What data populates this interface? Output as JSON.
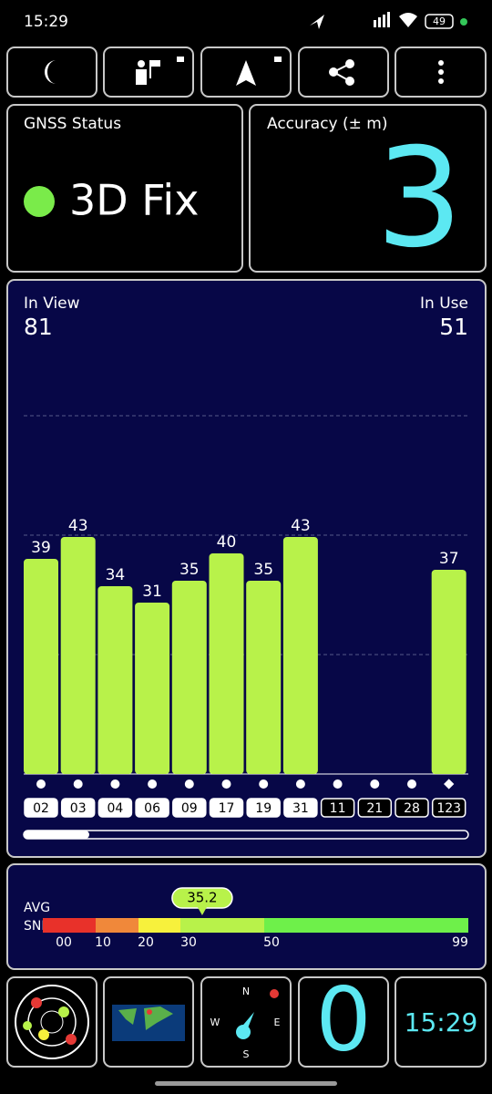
{
  "status_bar": {
    "time": "15:29",
    "battery": "49"
  },
  "gnss_status": {
    "title": "GNSS Status",
    "value": "3D Fix"
  },
  "accuracy": {
    "title": "Accuracy (± m)",
    "value": "3"
  },
  "satellites": {
    "in_view_label": "In View",
    "in_view": "81",
    "in_use_label": "In Use",
    "in_use": "51",
    "ids": [
      "02",
      "03",
      "04",
      "06",
      "09",
      "17",
      "19",
      "31",
      "11",
      "21",
      "28",
      "123"
    ],
    "values": [
      39,
      43,
      34,
      31,
      35,
      40,
      35,
      43,
      0,
      0,
      0,
      37
    ],
    "used": [
      true,
      true,
      true,
      true,
      true,
      true,
      true,
      true,
      false,
      false,
      false,
      true
    ],
    "markers": [
      "dot",
      "dot",
      "dot",
      "dot",
      "dot",
      "dot",
      "dot",
      "dot",
      "dot",
      "dot",
      "dot",
      "diamond"
    ],
    "id_style": [
      "filled",
      "filled",
      "filled",
      "filled",
      "filled",
      "filled",
      "filled",
      "filled",
      "outline",
      "outline",
      "outline",
      "outline"
    ],
    "used_color": "#b8f24a",
    "unused_color": "#e53935"
  },
  "snr": {
    "avg_label": "AVG",
    "snr_label": "SNR",
    "average": 35.2,
    "ticks": [
      {
        "value": 0,
        "label": "00"
      },
      10,
      20,
      30,
      50,
      99
    ],
    "segment_colors": [
      "#e8312a",
      "#f0883a",
      "#f7f13c",
      "#b8f24a",
      "#6ef04a"
    ]
  },
  "tiles": {
    "compass": {
      "north": "N",
      "east": "E",
      "south": "S",
      "west": "W"
    },
    "satellites_used": "0",
    "clock": "15:29"
  }
}
